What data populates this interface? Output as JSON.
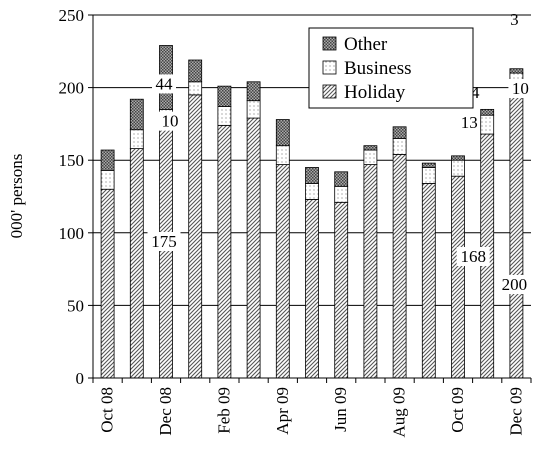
{
  "chart_data": {
    "type": "bar",
    "stacked": true,
    "ylabel": "000' persons",
    "xlabel": "",
    "ylim": [
      0,
      250
    ],
    "yticks": [
      0,
      50,
      100,
      150,
      200,
      250
    ],
    "grid": "horizontal",
    "legend_placement": "top-right",
    "categories": [
      "Oct 08",
      "Nov 08",
      "Dec 08",
      "Jan 09",
      "Feb 09",
      "Mar 09",
      "Apr 09",
      "May 09",
      "Jun 09",
      "Jul 09",
      "Aug 09",
      "Sep 09",
      "Oct 09",
      "Nov 09",
      "Dec 09"
    ],
    "category_labels": [
      "Oct 08",
      "",
      "Dec 08",
      "",
      "Feb 09",
      "",
      "Apr 09",
      "",
      "Jun 09",
      "",
      "Aug 09",
      "",
      "Oct 09",
      "",
      "Dec 09"
    ],
    "series": [
      {
        "name": "Holiday",
        "values": [
          130,
          158,
          175,
          195,
          174,
          179,
          147,
          123,
          121,
          147,
          154,
          134,
          139,
          168,
          200
        ]
      },
      {
        "name": "Business",
        "values": [
          13,
          13,
          10,
          9,
          13,
          12,
          13,
          11,
          11,
          10,
          11,
          11,
          11,
          13,
          10
        ]
      },
      {
        "name": "Other",
        "values": [
          14,
          21,
          44,
          15,
          14,
          13,
          18,
          11,
          10,
          3,
          8,
          3,
          3,
          4,
          3
        ]
      }
    ],
    "legend_order": [
      "Other",
      "Business",
      "Holiday"
    ],
    "annotations": [
      {
        "category": "Dec 08",
        "series": "Other",
        "text": "44"
      },
      {
        "category": "Dec 08",
        "series": "Business",
        "text": "10"
      },
      {
        "category": "Dec 08",
        "series": "Holiday",
        "text": "175"
      },
      {
        "category": "Dec 09",
        "series": "Other",
        "text": "3"
      },
      {
        "category": "Dec 09",
        "series": "Business",
        "text": "10"
      },
      {
        "category": "Dec 09",
        "series": "Holiday",
        "text": "200"
      },
      {
        "category": "Nov 09",
        "series": "Other",
        "text": "4"
      },
      {
        "category": "Nov 09",
        "series": "Business",
        "text": "13"
      },
      {
        "category": "Nov 09",
        "series": "Holiday",
        "text": "168"
      }
    ]
  }
}
